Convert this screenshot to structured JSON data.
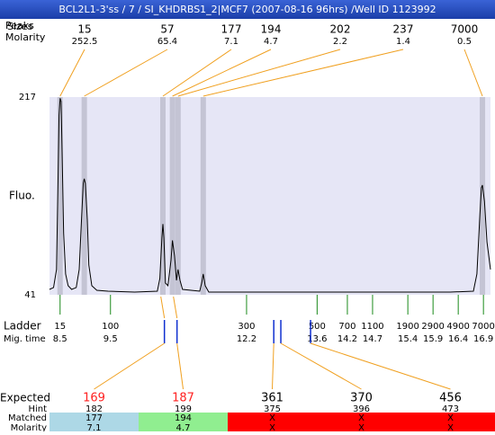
{
  "header": {
    "title": "BCL2L1-3'ss / 7 / SI_KHDRBS1_2|MCF7 (2007-08-16 96hrs) /Well ID 1123992"
  },
  "row_labels": {
    "peaks": "Peaks",
    "sizes": "Sizes",
    "molarity": "Molarity",
    "ladder": "Ladder",
    "mig_time": "Mig. time",
    "expected": "Expected",
    "hint": "Hint",
    "matched": "Matched",
    "molarity2": "Molarity"
  },
  "chart_data": {
    "type": "line",
    "y_label": "Fluo.",
    "xlim": [
      8.29,
      17.04
    ],
    "ylim": [
      41,
      217
    ],
    "yticks": [
      41,
      217
    ],
    "color": "#000000",
    "x": [
      8.29,
      8.37,
      8.43,
      8.46,
      8.48,
      8.5,
      8.52,
      8.54,
      8.57,
      8.61,
      8.66,
      8.73,
      8.82,
      8.88,
      8.93,
      8.96,
      8.98,
      9.0,
      9.04,
      9.07,
      9.13,
      9.23,
      9.45,
      9.98,
      10.43,
      10.48,
      10.52,
      10.54,
      10.56,
      10.59,
      10.64,
      10.7,
      10.73,
      10.77,
      10.81,
      10.84,
      10.88,
      10.93,
      11.27,
      11.31,
      11.34,
      11.38,
      11.45,
      12.66,
      14.45,
      16.24,
      16.7,
      16.77,
      16.83,
      16.86,
      16.88,
      16.92,
      16.97,
      17.04
    ],
    "values": [
      45.8,
      47.5,
      63.6,
      144.3,
      200.8,
      216,
      213.0,
      168.6,
      95.9,
      59.6,
      49.1,
      45.8,
      47.5,
      63.6,
      112.0,
      140.3,
      144.3,
      140.3,
      108.0,
      67.6,
      49.1,
      45.0,
      44.2,
      43.4,
      44.2,
      55.5,
      91.9,
      104.0,
      91.9,
      51.5,
      49.1,
      71.7,
      89.4,
      75.7,
      53.9,
      63.6,
      53.9,
      45.8,
      44.2,
      51.5,
      59.6,
      49.1,
      43.4,
      43.4,
      43.4,
      43.4,
      44.2,
      59.6,
      112.0,
      136.3,
      138.7,
      124.2,
      87.8,
      63.6
    ]
  },
  "peaks": [
    {
      "size": 15,
      "molarity": 252.5,
      "x": 8.5
    },
    {
      "size": 57,
      "molarity": 65.4,
      "x": 8.98
    },
    {
      "size": 177,
      "molarity": 7.1,
      "x": 10.54
    },
    {
      "size": 194,
      "molarity": 4.7,
      "x": 10.73
    },
    {
      "size": 202,
      "molarity": 2.2,
      "x": 10.84
    },
    {
      "size": 237,
      "molarity": 1.4,
      "x": 11.34
    },
    {
      "size": 7000,
      "molarity": 0.5,
      "x": 16.88
    }
  ],
  "ladder": [
    {
      "size": 15,
      "mig_time": 8.5
    },
    {
      "size": 100,
      "mig_time": 9.5
    },
    {
      "size": 300,
      "mig_time": 12.2
    },
    {
      "size": 500,
      "mig_time": 13.6
    },
    {
      "size": 700,
      "mig_time": 14.2
    },
    {
      "size": 1100,
      "mig_time": 14.7
    },
    {
      "size": 1900,
      "mig_time": 15.4
    },
    {
      "size": 2900,
      "mig_time": 15.9
    },
    {
      "size": 4900,
      "mig_time": 16.4
    },
    {
      "size": 7000,
      "mig_time": 16.9
    }
  ],
  "expected": [
    {
      "size": 169,
      "hint": 182,
      "matched": 177,
      "molarity": 7.1,
      "x": 10.57,
      "color": "#ff2020",
      "fill": "#add8e6"
    },
    {
      "size": 187,
      "hint": 199,
      "matched": 194,
      "molarity": 4.7,
      "x": 10.82,
      "color": "#ff2020",
      "fill": "#90ee90"
    },
    {
      "size": 361,
      "hint": 375,
      "matched": "X",
      "molarity": "X",
      "x": 12.74,
      "color": "#000000",
      "fill": "#ff0000"
    },
    {
      "size": 370,
      "hint": 396,
      "matched": "X",
      "molarity": "X",
      "x": 12.88,
      "color": "#000000",
      "fill": "#ff0000"
    },
    {
      "size": 456,
      "hint": 473,
      "matched": "X",
      "molarity": "X",
      "x": 13.47,
      "color": "#000000",
      "fill": "#ff0000"
    }
  ]
}
